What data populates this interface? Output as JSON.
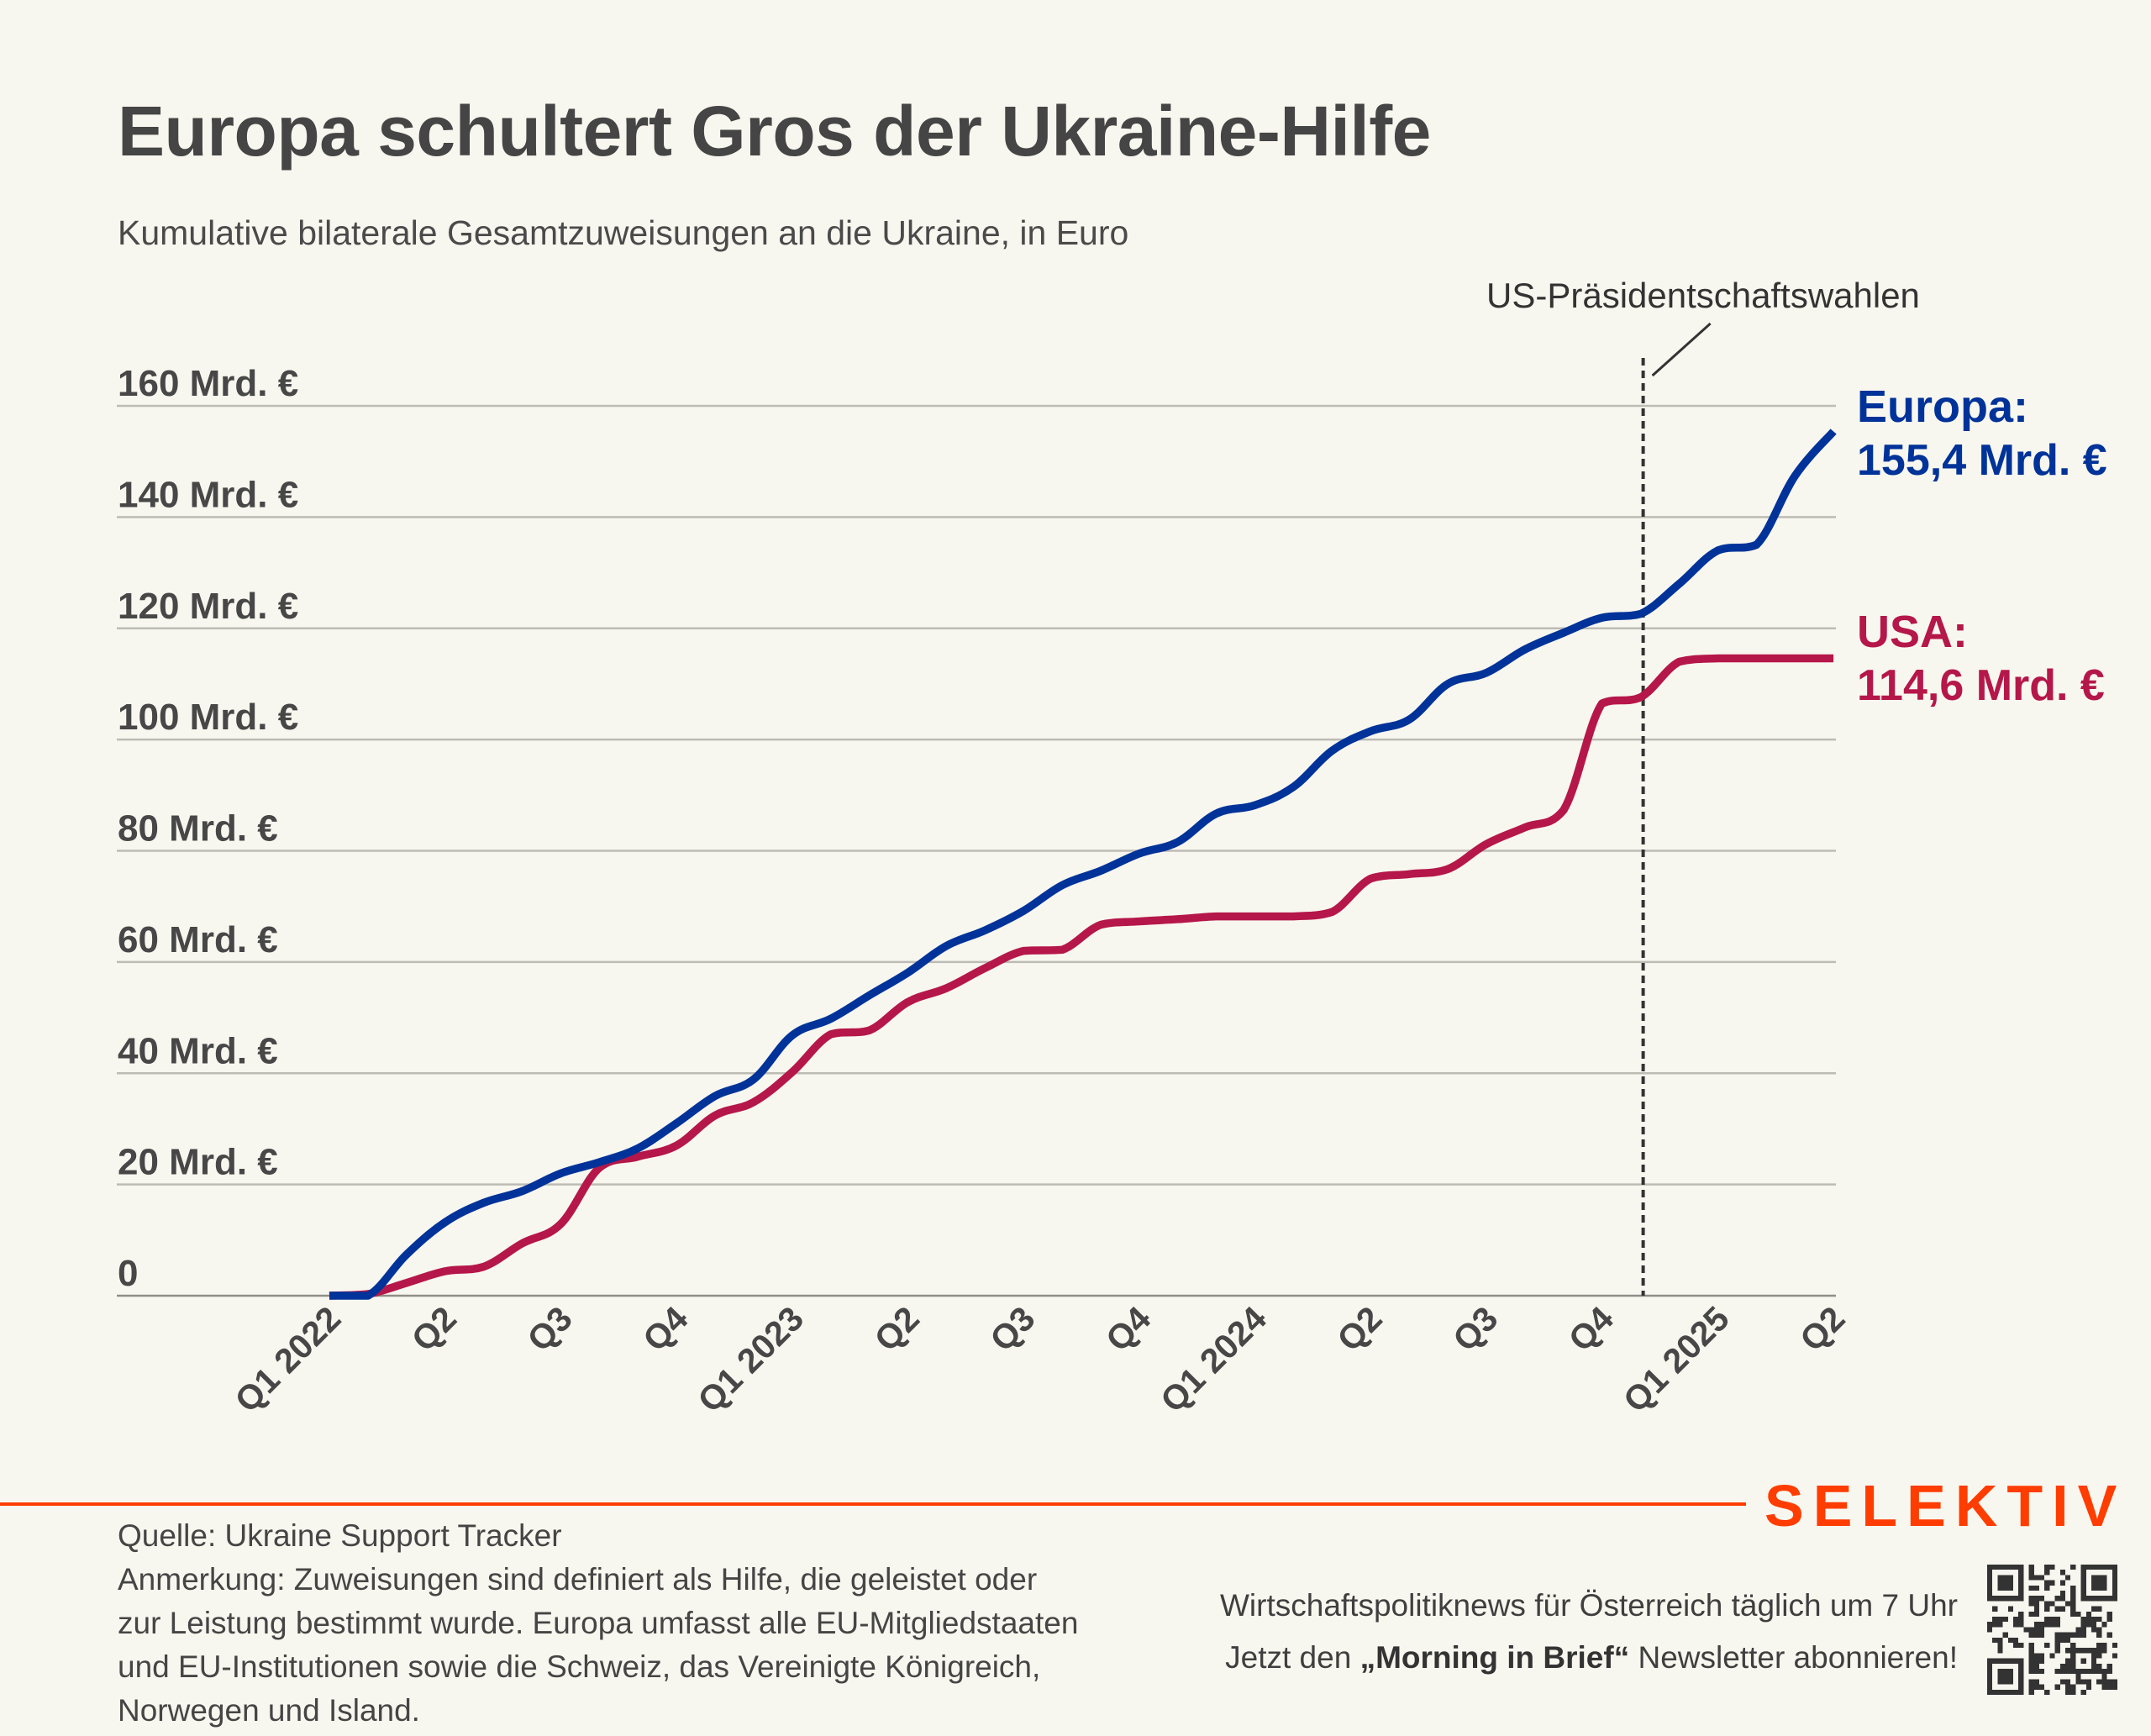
{
  "header": {
    "title": "Europa schultert Gros der Ukraine-Hilfe",
    "subtitle": "Kumulative bilaterale Gesamtzuweisungen an die Ukraine, in Euro"
  },
  "chart_data": {
    "type": "line",
    "title": "Europa schultert Gros der Ukraine-Hilfe",
    "subtitle": "Kumulative bilaterale Gesamtzuweisungen an die Ukraine, in Euro",
    "xlabel": "",
    "ylabel": "",
    "x_unit": "month",
    "x_start": "2022-01",
    "x_end": "2025-04",
    "ylim": [
      0,
      160
    ],
    "grid": true,
    "yticks": [
      0,
      20,
      40,
      60,
      80,
      100,
      120,
      140,
      160
    ],
    "ytick_labels": [
      "0",
      "20 Mrd. €",
      "40 Mrd. €",
      "60 Mrd. €",
      "80 Mrd. €",
      "100 Mrd. €",
      "120 Mrd. €",
      "140 Mrd. €",
      "160 Mrd. €"
    ],
    "xtick_labels": [
      "Q1 2022",
      "Q2",
      "Q3",
      "Q4",
      "Q1 2023",
      "Q2",
      "Q3",
      "Q4",
      "Q1 2024",
      "Q2",
      "Q3",
      "Q4",
      "Q1 2025",
      "Q2"
    ],
    "series": [
      {
        "name": "Europa",
        "color": "#003399",
        "end_label": "Europa:",
        "end_value_label": "155,4 Mrd. €",
        "values": [
          0,
          0,
          7.4,
          13.2,
          16.7,
          18.8,
          22,
          24,
          26.5,
          31,
          35.9,
          38.9,
          46.8,
          49.8,
          54,
          58.1,
          62.9,
          65.7,
          69.2,
          73.8,
          76.4,
          79.5,
          81.6,
          86.7,
          88.2,
          91.5,
          98,
          101.5,
          103.6,
          110,
          112,
          116.2,
          119.2,
          121.9,
          122.6,
          128,
          134,
          135,
          147.4,
          155.4
        ]
      },
      {
        "name": "USA",
        "color": "#b5174a",
        "end_label": "USA:",
        "end_value_label": "114,6 Mrd. €",
        "values": [
          0,
          0.3,
          2.3,
          4.4,
          5.2,
          9.4,
          12.9,
          23,
          25,
          27,
          32.4,
          34.8,
          40.2,
          47,
          47.7,
          52.8,
          55.3,
          58.9,
          62,
          62.2,
          66.7,
          67.3,
          67.7,
          68.2,
          68.2,
          68.2,
          69,
          75,
          75.8,
          76.7,
          81.2,
          84.2,
          87.3,
          106.5,
          107.6,
          114,
          114.6,
          114.6,
          114.6,
          114.6
        ]
      }
    ],
    "annotations": [
      {
        "label": "US-Präsidentschaftswahlen",
        "x": "2024-11",
        "style": "dotted vertical line"
      }
    ]
  },
  "footer": {
    "source": "Quelle: Ukraine Support Tracker",
    "note": "Anmerkung: Zuweisungen sind definiert als Hilfe, die geleistet oder zur Leistung bestimmt wurde. Europa umfasst alle EU-Mitgliedstaaten und EU-Institutionen sowie die Schweiz, das Vereinigte Königreich, Norwegen und Island.",
    "brand": "SELEKTIV",
    "promo_line1": "Wirtschaftspolitiknews für Österreich täglich um 7 Uhr",
    "promo_line2_pre": "Jetzt den ",
    "promo_line2_bold": "„Morning in Brief“",
    "promo_line2_post": " Newsletter abonnieren!",
    "qr_icon": "qr-code-icon",
    "colors": {
      "brand": "#ff3d00"
    }
  }
}
